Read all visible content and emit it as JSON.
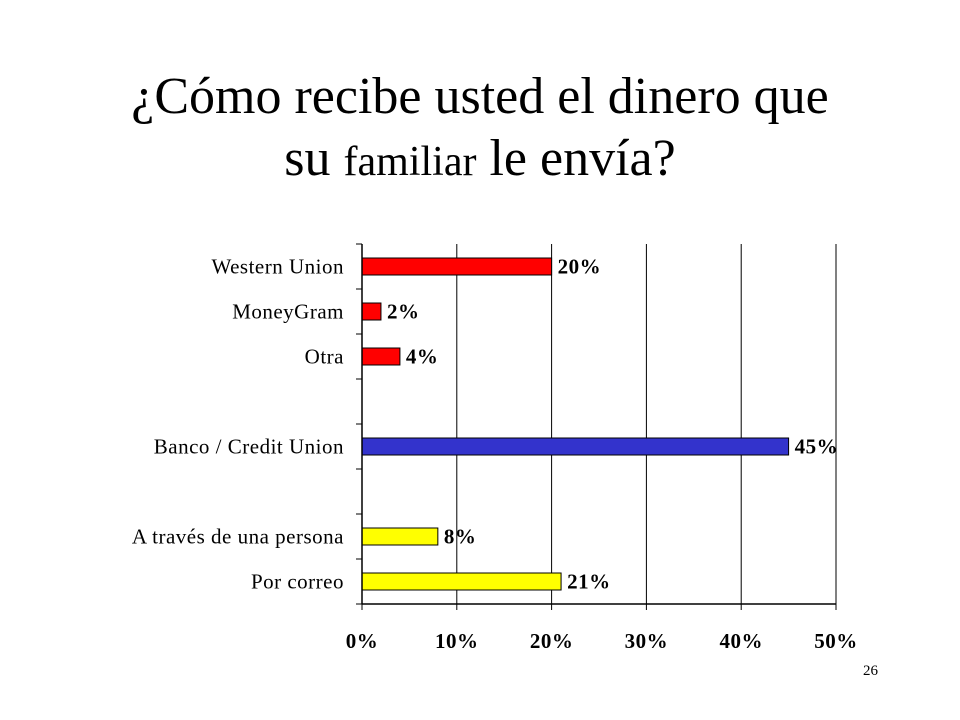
{
  "slide": {
    "title_part1": "¿Cómo recibe usted el dinero que",
    "title_part2a": "su",
    "title_part2b": "familiar",
    "title_part2c": "le envía?",
    "page_number": "26"
  },
  "chart_data": {
    "type": "bar",
    "orientation": "horizontal",
    "title": "",
    "xlabel": "",
    "ylabel": "",
    "categories": [
      "Western Union",
      "MoneyGram",
      "Otra",
      "",
      "Banco / Credit Union",
      "",
      "A través de una persona",
      "Por correo"
    ],
    "values": [
      20,
      2,
      4,
      null,
      45,
      null,
      8,
      21
    ],
    "value_labels": [
      "20%",
      "2%",
      "4%",
      "",
      "45%",
      "",
      "8%",
      "21%"
    ],
    "bar_colors": [
      "#ff0000",
      "#ff0000",
      "#ff0000",
      "",
      "#3333cc",
      "",
      "#ffff00",
      "#ffff00"
    ],
    "xlim": [
      0,
      50
    ],
    "x_ticks": [
      0,
      10,
      20,
      30,
      40,
      50
    ],
    "x_tick_labels": [
      "0%",
      "10%",
      "20%",
      "30%",
      "40%",
      "50%"
    ],
    "grid": "vertical",
    "legend": "none"
  }
}
